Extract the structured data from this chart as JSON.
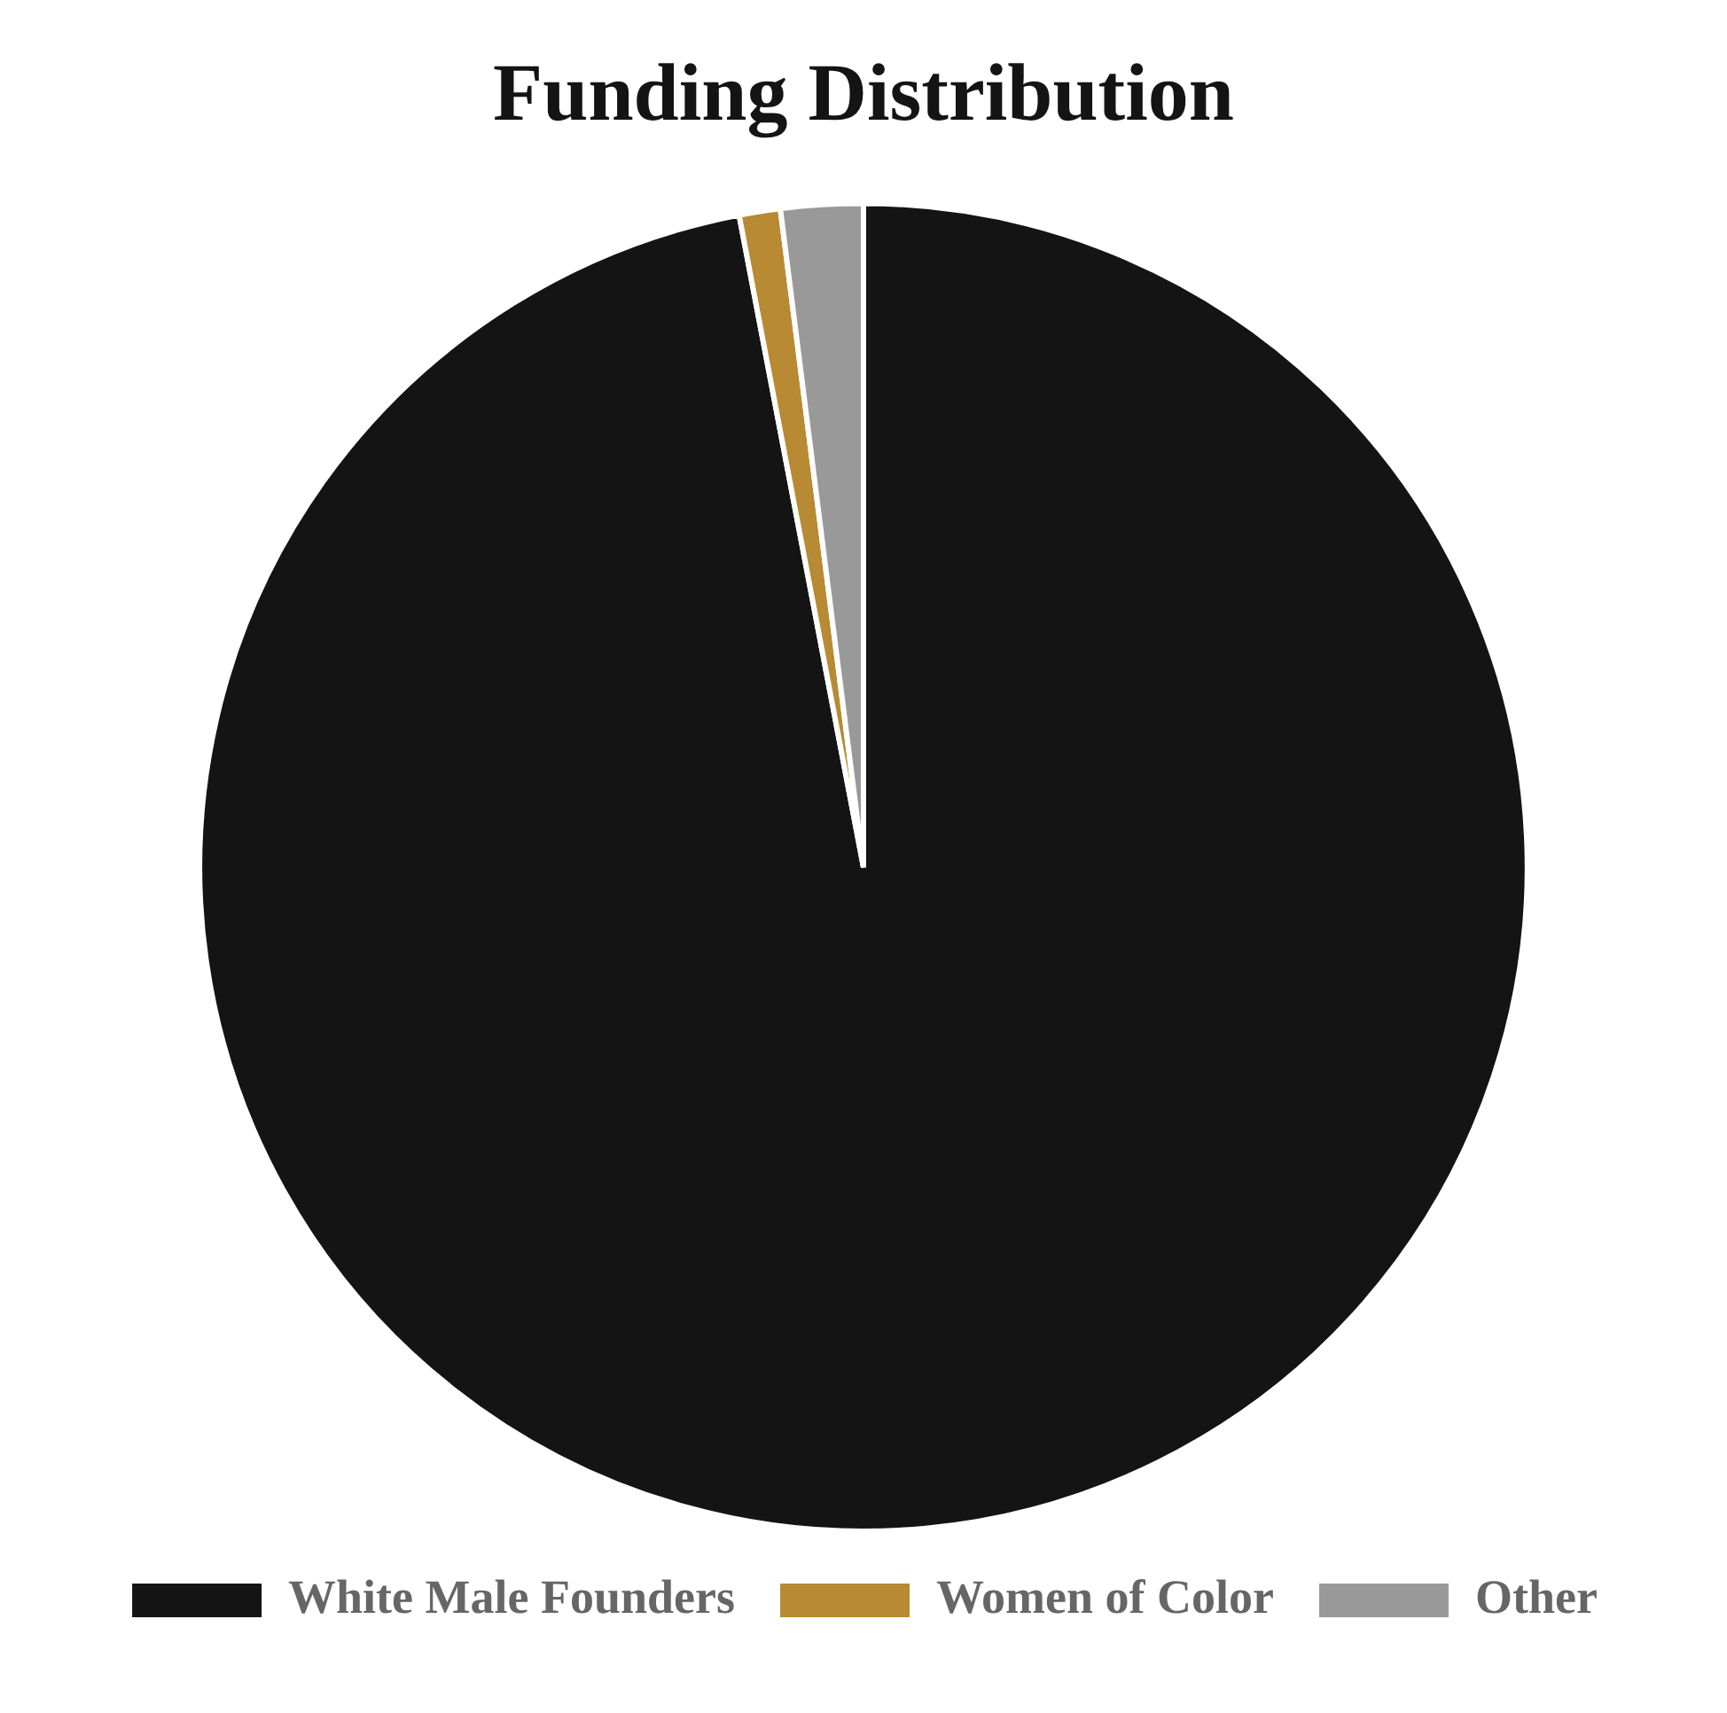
{
  "chart_data": {
    "type": "pie",
    "title": "Funding Distribution",
    "categories": [
      "White Male Founders",
      "Women of Color",
      "Other"
    ],
    "values": [
      97,
      1,
      2
    ],
    "colors": [
      "#141414",
      "#b78a33",
      "#999999"
    ],
    "legend": "bottom"
  }
}
